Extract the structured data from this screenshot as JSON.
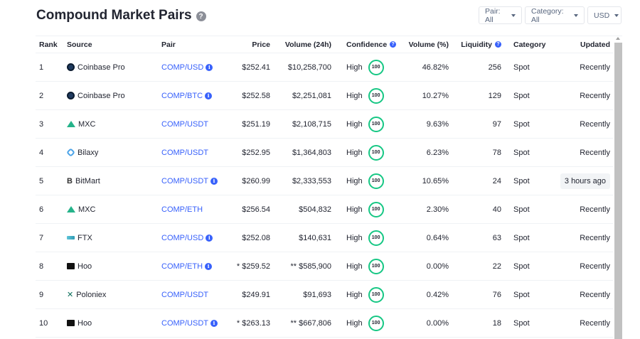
{
  "title": "Compound Market Pairs",
  "filters": {
    "pair": "Pair: All",
    "category": "Category: All",
    "currency": "USD"
  },
  "columns": {
    "rank": "Rank",
    "source": "Source",
    "pair": "Pair",
    "price": "Price",
    "volume": "Volume (24h)",
    "confidence": "Confidence",
    "volume_pct": "Volume (%)",
    "liquidity": "Liquidity",
    "category": "Category",
    "updated": "Updated"
  },
  "rows": [
    {
      "rank": "1",
      "source": "Coinbase Pro",
      "logo": "coinbase-icon",
      "pair": "COMP/USD",
      "pair_info": true,
      "price": "$252.41",
      "volume": "$10,258,700",
      "confidence": "High",
      "score": "100",
      "volume_pct": "46.82%",
      "liquidity": "256",
      "category": "Spot",
      "updated": "Recently"
    },
    {
      "rank": "2",
      "source": "Coinbase Pro",
      "logo": "coinbase-icon",
      "pair": "COMP/BTC",
      "pair_info": true,
      "price": "$252.58",
      "volume": "$2,251,081",
      "confidence": "High",
      "score": "100",
      "volume_pct": "10.27%",
      "liquidity": "129",
      "category": "Spot",
      "updated": "Recently"
    },
    {
      "rank": "3",
      "source": "MXC",
      "logo": "mxc-icon",
      "pair": "COMP/USDT",
      "pair_info": false,
      "price": "$251.19",
      "volume": "$2,108,715",
      "confidence": "High",
      "score": "100",
      "volume_pct": "9.63%",
      "liquidity": "97",
      "category": "Spot",
      "updated": "Recently"
    },
    {
      "rank": "4",
      "source": "Bilaxy",
      "logo": "bilaxy-icon",
      "pair": "COMP/USDT",
      "pair_info": false,
      "price": "$252.95",
      "volume": "$1,364,803",
      "confidence": "High",
      "score": "100",
      "volume_pct": "6.23%",
      "liquidity": "78",
      "category": "Spot",
      "updated": "Recently"
    },
    {
      "rank": "5",
      "source": "BitMart",
      "logo": "bitmart-icon",
      "pair": "COMP/USDT",
      "pair_info": true,
      "price": "$260.99",
      "volume": "$2,333,553",
      "confidence": "High",
      "score": "100",
      "volume_pct": "10.65%",
      "liquidity": "24",
      "category": "Spot",
      "updated": "3 hours ago",
      "highlight": true
    },
    {
      "rank": "6",
      "source": "MXC",
      "logo": "mxc-icon",
      "pair": "COMP/ETH",
      "pair_info": false,
      "price": "$256.54",
      "volume": "$504,832",
      "confidence": "High",
      "score": "100",
      "volume_pct": "2.30%",
      "liquidity": "40",
      "category": "Spot",
      "updated": "Recently"
    },
    {
      "rank": "7",
      "source": "FTX",
      "logo": "ftx-icon",
      "pair": "COMP/USD",
      "pair_info": true,
      "price": "$252.08",
      "volume": "$140,631",
      "confidence": "High",
      "score": "100",
      "volume_pct": "0.64%",
      "liquidity": "63",
      "category": "Spot",
      "updated": "Recently"
    },
    {
      "rank": "8",
      "source": "Hoo",
      "logo": "hoo-icon",
      "pair": "COMP/ETH",
      "pair_info": true,
      "price": "* $259.52",
      "volume": "** $585,900",
      "confidence": "High",
      "score": "100",
      "volume_pct": "0.00%",
      "liquidity": "22",
      "category": "Spot",
      "updated": "Recently"
    },
    {
      "rank": "9",
      "source": "Poloniex",
      "logo": "poloniex-icon",
      "pair": "COMP/USDT",
      "pair_info": false,
      "price": "$249.91",
      "volume": "$91,693",
      "confidence": "High",
      "score": "100",
      "volume_pct": "0.42%",
      "liquidity": "76",
      "category": "Spot",
      "updated": "Recently"
    },
    {
      "rank": "10",
      "source": "Hoo",
      "logo": "hoo-icon",
      "pair": "COMP/USDT",
      "pair_info": true,
      "price": "* $263.13",
      "volume": "** $667,806",
      "confidence": "High",
      "score": "100",
      "volume_pct": "0.00%",
      "liquidity": "18",
      "category": "Spot",
      "updated": "Recently"
    }
  ],
  "colors": {
    "accent": "#3861fb",
    "confidence_ring": "#16c784",
    "text": "#222531"
  }
}
